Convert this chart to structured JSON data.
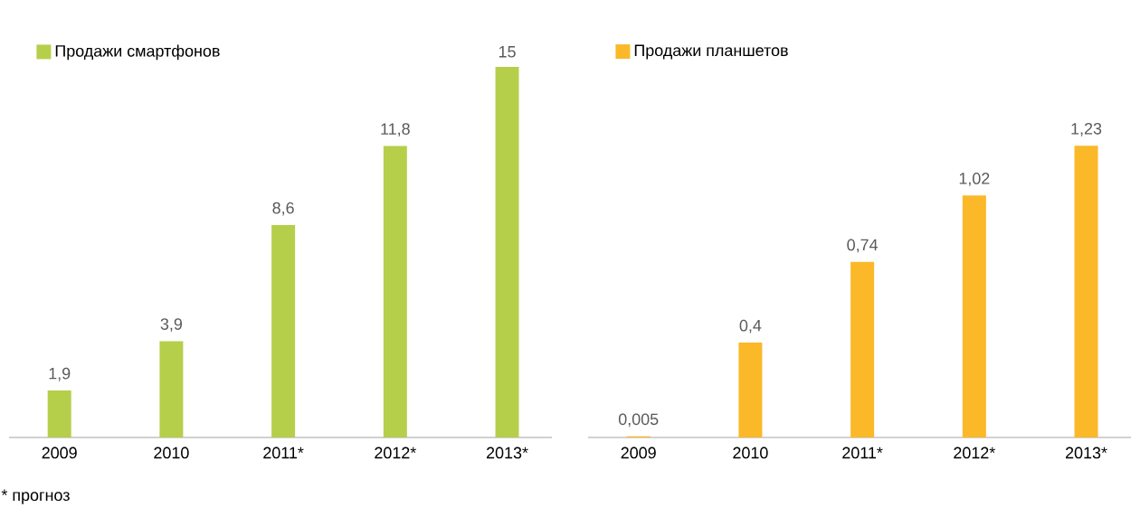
{
  "chart_data": [
    {
      "type": "bar",
      "categories": [
        "2009",
        "2010",
        "2011*",
        "2012*",
        "2013*"
      ],
      "series": [
        {
          "name": "Продажи смартфонов",
          "color": "#b5cf4a",
          "values": [
            1.9,
            3.9,
            8.6,
            11.8,
            15
          ],
          "value_labels": [
            "1,9",
            "3,9",
            "8,6",
            "11,8",
            "15"
          ]
        }
      ],
      "legend": "top left",
      "tick_labels": "x",
      "annotations": [
        "* прогноз"
      ]
    },
    {
      "type": "bar",
      "categories": [
        "2009",
        "2010",
        "2011*",
        "2012*",
        "2013*"
      ],
      "series": [
        {
          "name": "Продажи планшетов",
          "color": "#fbb829",
          "values": [
            0.005,
            0.4,
            0.74,
            1.02,
            1.23
          ],
          "value_labels": [
            "0,005",
            "0,4",
            "0,74",
            "1,02",
            "1,23"
          ]
        }
      ],
      "legend": "top left",
      "tick_labels": "x"
    }
  ]
}
